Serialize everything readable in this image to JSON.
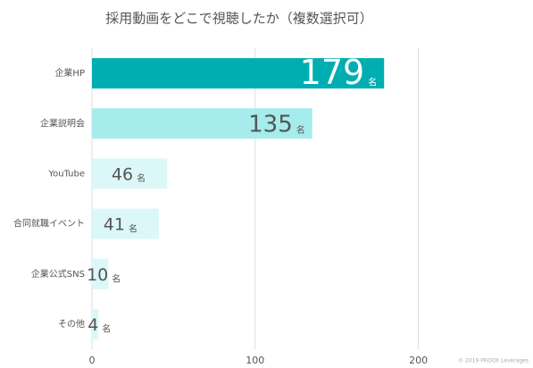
{
  "chart_data": {
    "type": "barh",
    "title": "採用動画をどこで視聴したか（複数選択可）",
    "categories": [
      "企業HP",
      "企業説明会",
      "YouTube",
      "合同就職イベント",
      "企業公式SNS",
      "その他"
    ],
    "values": [
      179,
      135,
      46,
      41,
      10,
      4
    ],
    "unit": "名",
    "colors": [
      "#00aeb1",
      "#a6ecec",
      "#dcf7f7",
      "#dcf7f7",
      "#dcf7f7",
      "#dcf7f7"
    ],
    "label_colors": [
      "#ffffff",
      "#555555",
      "#555555",
      "#555555",
      "#555555",
      "#555555"
    ],
    "xlim": [
      0,
      250
    ],
    "xticks": [
      0,
      100,
      200
    ],
    "grid": true,
    "footnote": "© 2019 PROOX Leverages"
  }
}
